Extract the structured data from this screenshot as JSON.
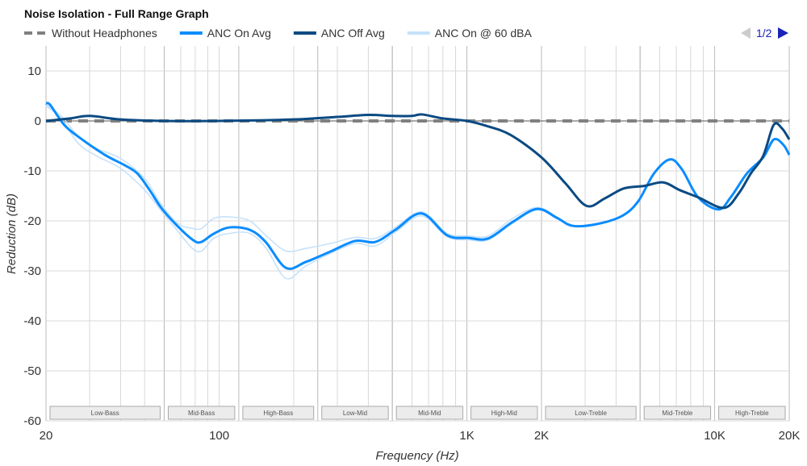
{
  "chart_data": {
    "type": "line",
    "title": "Noise Isolation - Full Range Graph",
    "xlabel": "Frequency (Hz)",
    "ylabel": "Reduction (dB)",
    "x_scale": "log",
    "xlim": [
      20,
      20000
    ],
    "ylim": [
      -60,
      15
    ],
    "x_ticks": [
      {
        "v": 20,
        "label": "20"
      },
      {
        "v": 100,
        "label": "100"
      },
      {
        "v": 1000,
        "label": "1K"
      },
      {
        "v": 2000,
        "label": "2K"
      },
      {
        "v": 10000,
        "label": "10K"
      },
      {
        "v": 20000,
        "label": "20K"
      }
    ],
    "y_ticks": [
      10,
      0,
      -10,
      -20,
      -30,
      -40,
      -50,
      -60
    ],
    "grid": true,
    "legend_position": "top-left",
    "legend_page": "1/2",
    "bands": [
      {
        "label": "Low-Bass",
        "from": 20,
        "to": 60
      },
      {
        "label": "Mid-Bass",
        "from": 60,
        "to": 120
      },
      {
        "label": "High-Bass",
        "from": 120,
        "to": 250
      },
      {
        "label": "Low-Mid",
        "from": 250,
        "to": 500
      },
      {
        "label": "Mid-Mid",
        "from": 500,
        "to": 1000
      },
      {
        "label": "High-Mid",
        "from": 1000,
        "to": 2000
      },
      {
        "label": "Low-Treble",
        "from": 2000,
        "to": 5000
      },
      {
        "label": "Mid-Treble",
        "from": 5000,
        "to": 10000
      },
      {
        "label": "High-Treble",
        "from": 10000,
        "to": 20000
      }
    ],
    "series": [
      {
        "name": "Without Headphones",
        "color": "#808080",
        "dashed": true,
        "points": [
          [
            20,
            0
          ],
          [
            20000,
            0
          ]
        ]
      },
      {
        "name": "ANC On @ 60 dBA",
        "color": "#c6e2fb",
        "points": [
          [
            20,
            3.3
          ],
          [
            23,
            1
          ],
          [
            27,
            -3
          ],
          [
            32,
            -5.5
          ],
          [
            40,
            -7.5
          ],
          [
            50,
            -11.5
          ],
          [
            58,
            -16.5
          ],
          [
            68,
            -20.5
          ],
          [
            78,
            -21.5
          ],
          [
            85,
            -21.5
          ],
          [
            95,
            -19.5
          ],
          [
            110,
            -19.2
          ],
          [
            133,
            -20
          ],
          [
            155,
            -23
          ],
          [
            186,
            -26
          ],
          [
            224,
            -25.5
          ],
          [
            282,
            -24.5
          ],
          [
            354,
            -23.3
          ],
          [
            427,
            -23.5
          ],
          [
            514,
            -21.3
          ],
          [
            656,
            -18.2
          ],
          [
            833,
            -22.5
          ],
          [
            1015,
            -23
          ],
          [
            1220,
            -23
          ],
          [
            1530,
            -19.5
          ],
          [
            1920,
            -17.3
          ],
          [
            2310,
            -19.2
          ]
        ]
      },
      {
        "color": "#c6e2fb",
        "points": [
          [
            20,
            3
          ],
          [
            23,
            0.5
          ],
          [
            27,
            -4.5
          ],
          [
            32,
            -7
          ],
          [
            40,
            -9.5
          ],
          [
            50,
            -13.8
          ],
          [
            58,
            -17.8
          ],
          [
            68,
            -22
          ],
          [
            78,
            -25.5
          ],
          [
            85,
            -26
          ],
          [
            95,
            -23.5
          ],
          [
            110,
            -22.5
          ],
          [
            133,
            -22.5
          ],
          [
            155,
            -25.5
          ],
          [
            186,
            -31.5
          ],
          [
            224,
            -29
          ],
          [
            282,
            -26.5
          ],
          [
            354,
            -24.5
          ],
          [
            427,
            -25
          ],
          [
            514,
            -22.3
          ],
          [
            656,
            -19
          ],
          [
            833,
            -23.2
          ],
          [
            1015,
            -23.8
          ],
          [
            1220,
            -23.8
          ],
          [
            1530,
            -20.5
          ],
          [
            1920,
            -17.8
          ],
          [
            2310,
            -19.6
          ]
        ]
      },
      {
        "name": "ANC On Avg",
        "color": "#0a8cff",
        "points": [
          [
            20,
            3.5
          ],
          [
            20.8,
            3.2
          ],
          [
            23.7,
            -0.8
          ],
          [
            27.6,
            -3.5
          ],
          [
            34.6,
            -6.8
          ],
          [
            41.7,
            -8.9
          ],
          [
            46.7,
            -10.5
          ],
          [
            52.2,
            -13.7
          ],
          [
            58.4,
            -17.4
          ],
          [
            67.8,
            -21
          ],
          [
            78.8,
            -23.9
          ],
          [
            84.8,
            -24.2
          ],
          [
            94.8,
            -22.6
          ],
          [
            110,
            -21.3
          ],
          [
            133,
            -21.8
          ],
          [
            154,
            -24.2
          ],
          [
            186,
            -29.4
          ],
          [
            224,
            -28.2
          ],
          [
            282,
            -26.1
          ],
          [
            354,
            -24
          ],
          [
            427,
            -24.2
          ],
          [
            514,
            -21.8
          ],
          [
            656,
            -18.5
          ],
          [
            833,
            -22.9
          ],
          [
            1015,
            -23.4
          ],
          [
            1220,
            -23.5
          ],
          [
            1530,
            -20.2
          ],
          [
            1920,
            -17.6
          ],
          [
            2310,
            -19.4
          ],
          [
            2680,
            -21
          ],
          [
            3370,
            -20.6
          ],
          [
            4230,
            -19
          ],
          [
            4910,
            -16.1
          ],
          [
            5690,
            -10.5
          ],
          [
            6600,
            -7.7
          ],
          [
            7380,
            -9.7
          ],
          [
            8580,
            -15.3
          ],
          [
            10350,
            -17.7
          ],
          [
            11600,
            -15.3
          ],
          [
            13500,
            -10.5
          ],
          [
            15700,
            -7.3
          ],
          [
            17340,
            -3.7
          ],
          [
            18960,
            -4.8
          ],
          [
            20000,
            -6.8
          ]
        ]
      },
      {
        "name": "ANC Off Avg",
        "color": "#0b4a82",
        "points": [
          [
            20,
            0
          ],
          [
            25,
            0.5
          ],
          [
            30,
            1
          ],
          [
            40,
            0.3
          ],
          [
            60,
            0
          ],
          [
            100,
            0
          ],
          [
            200,
            0.3
          ],
          [
            300,
            0.8
          ],
          [
            400,
            1.2
          ],
          [
            500,
            1
          ],
          [
            600,
            1
          ],
          [
            660,
            1.3
          ],
          [
            800,
            0.5
          ],
          [
            1000,
            0
          ],
          [
            1200,
            -1
          ],
          [
            1500,
            -2.8
          ],
          [
            2000,
            -7.3
          ],
          [
            2500,
            -12.5
          ],
          [
            3040,
            -17
          ],
          [
            3600,
            -15.5
          ],
          [
            4300,
            -13.5
          ],
          [
            5200,
            -13
          ],
          [
            6200,
            -12.3
          ],
          [
            7200,
            -13.8
          ],
          [
            8600,
            -15.3
          ],
          [
            10900,
            -17.4
          ],
          [
            12500,
            -14.5
          ],
          [
            14000,
            -10.5
          ],
          [
            15700,
            -7
          ],
          [
            17300,
            -0.8
          ],
          [
            18700,
            -1.5
          ],
          [
            20000,
            -3.7
          ]
        ]
      }
    ]
  }
}
